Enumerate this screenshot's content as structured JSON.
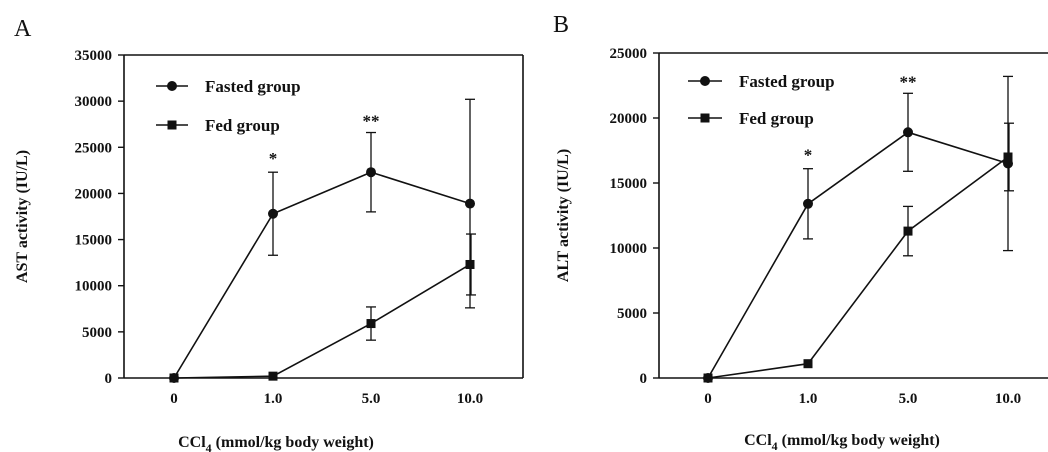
{
  "chart_data": [
    {
      "panel": "A",
      "type": "line",
      "xlabel_main": "CCl",
      "xlabel_sub": "4",
      "xlabel_rest": " (mmol/kg body weight)",
      "ylabel": "AST activity (IU/L)",
      "categories": [
        "0",
        "1.0",
        "5.0",
        "10.0"
      ],
      "ylim": [
        0,
        35000
      ],
      "yticks": [
        0,
        5000,
        10000,
        15000,
        20000,
        25000,
        30000,
        35000
      ],
      "grid": false,
      "legend_position": "top-left",
      "series": [
        {
          "name": "Fasted group",
          "marker": "circle",
          "values": [
            0,
            17800,
            22300,
            18900
          ],
          "errors": [
            0,
            4500,
            4300,
            11300
          ]
        },
        {
          "name": "Fed group",
          "marker": "square",
          "values": [
            0,
            200,
            5900,
            12300
          ],
          "errors": [
            0,
            0,
            1800,
            3300
          ]
        }
      ],
      "annotations": [
        {
          "category": 1,
          "text": "*"
        },
        {
          "category": 2,
          "text": "**"
        }
      ]
    },
    {
      "panel": "B",
      "type": "line",
      "xlabel_main": "CCl",
      "xlabel_sub": "4",
      "xlabel_rest": " (mmol/kg body weight)",
      "ylabel": "ALT activity (IU/L)",
      "categories": [
        "0",
        "1.0",
        "5.0",
        "10.0"
      ],
      "ylim": [
        0,
        25000
      ],
      "yticks": [
        0,
        5000,
        10000,
        15000,
        20000,
        25000
      ],
      "grid": false,
      "legend_position": "top-left",
      "series": [
        {
          "name": "Fasted group",
          "marker": "circle",
          "values": [
            0,
            13400,
            18900,
            16500
          ],
          "errors": [
            0,
            2700,
            3000,
            6700
          ]
        },
        {
          "name": "Fed group",
          "marker": "square",
          "values": [
            0,
            1100,
            11300,
            17000
          ],
          "errors": [
            0,
            0,
            1900,
            2600
          ]
        }
      ],
      "annotations": [
        {
          "category": 1,
          "text": "*"
        },
        {
          "category": 2,
          "text": "**"
        }
      ]
    }
  ]
}
